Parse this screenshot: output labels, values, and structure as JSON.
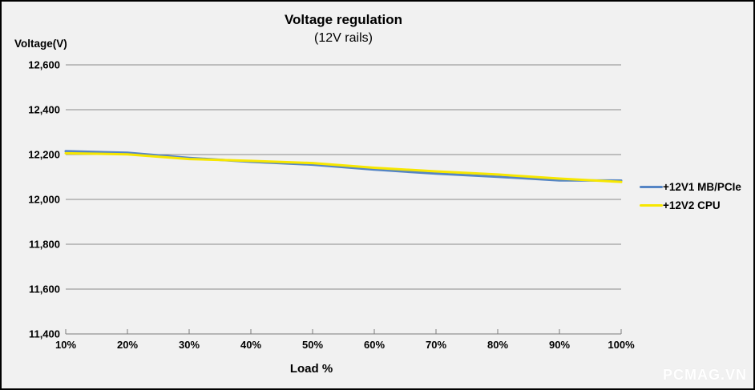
{
  "watermark": "PCMAG.VN",
  "chart_data": {
    "type": "line",
    "title": "Voltage regulation",
    "subtitle": "(12V rails)",
    "xlabel": "Load %",
    "ylabel": "Voltage(V)",
    "x_labels": [
      "10%",
      "20%",
      "30%",
      "40%",
      "50%",
      "60%",
      "70%",
      "80%",
      "90%",
      "100%"
    ],
    "ylim": [
      11400,
      12600
    ],
    "grid": true,
    "legend_position": "right",
    "yticks": [
      {
        "value": 12600,
        "label": "12,600"
      },
      {
        "value": 12400,
        "label": "12,400"
      },
      {
        "value": 12200,
        "label": "12,200"
      },
      {
        "value": 12000,
        "label": "12,000"
      },
      {
        "value": 11800,
        "label": "11,800"
      },
      {
        "value": 11600,
        "label": "11,600"
      },
      {
        "value": 11400,
        "label": "11,400"
      }
    ],
    "series": [
      {
        "name": "+12V1 MB/PCIe",
        "color": "#5585c5",
        "values": [
          12215,
          12208,
          12185,
          12168,
          12155,
          12133,
          12115,
          12101,
          12085,
          12084
        ]
      },
      {
        "name": "+12V2 CPU",
        "color": "#f7e700",
        "values": [
          12206,
          12201,
          12180,
          12172,
          12162,
          12141,
          12125,
          12111,
          12093,
          12078
        ]
      }
    ],
    "colors": {
      "background": "#f1f1f1",
      "gridline": "#8a8a8a",
      "axis": "#7a7a7a",
      "text": "#000000",
      "border": "#000000"
    }
  }
}
